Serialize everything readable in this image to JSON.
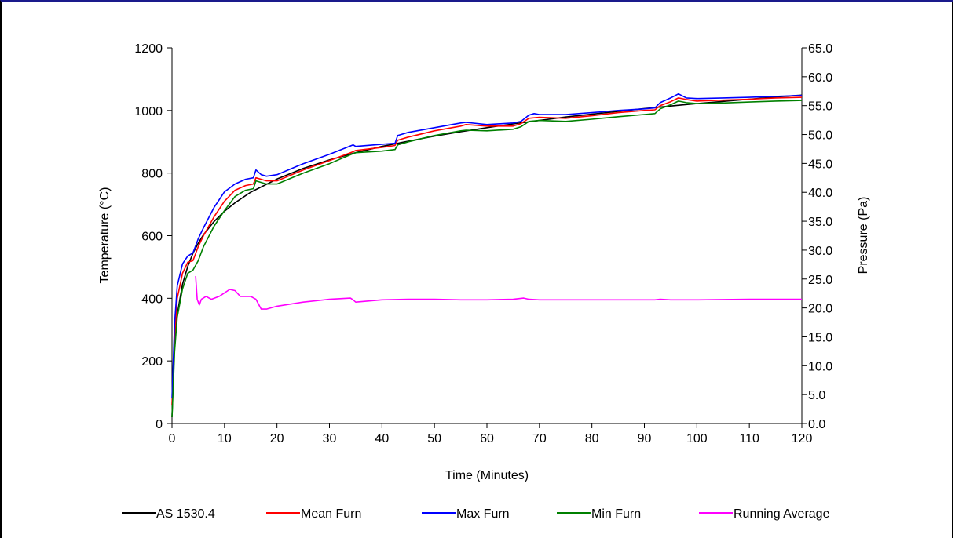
{
  "chart_data": {
    "type": "line",
    "xlabel": "Time (Minutes)",
    "ylabel": "Temperature (°C)",
    "y2label": "Pressure (Pa)",
    "xlim": [
      0,
      120
    ],
    "ylim": [
      0,
      1200
    ],
    "y2lim": [
      0,
      65
    ],
    "x_ticks": [
      0,
      10,
      20,
      30,
      40,
      50,
      60,
      70,
      80,
      90,
      100,
      110,
      120
    ],
    "y_ticks": [
      0,
      200,
      400,
      600,
      800,
      1000,
      1200
    ],
    "y2_ticks": [
      "0.0",
      "5.0",
      "10.0",
      "15.0",
      "20.0",
      "25.0",
      "30.0",
      "35.0",
      "40.0",
      "45.0",
      "50.0",
      "55.0",
      "60.0",
      "65.0"
    ],
    "grid": false,
    "legend_position": "bottom",
    "series": [
      {
        "name": "AS 1530.4",
        "color": "#000000",
        "axis": "left",
        "x": [
          0,
          0.5,
          1,
          2,
          3,
          4,
          5,
          6,
          8,
          10,
          12,
          15,
          20,
          25,
          30,
          35,
          40,
          45,
          50,
          55,
          60,
          65,
          70,
          75,
          80,
          85,
          90,
          95,
          100,
          105,
          110,
          115,
          120
        ],
        "y": [
          20,
          265,
          349,
          445,
          502,
          544,
          576,
          603,
          645,
          678,
          705,
          739,
          781,
          815,
          842,
          865,
          885,
          902,
          918,
          932,
          945,
          957,
          968,
          979,
          988,
          997,
          1006,
          1014,
          1022,
          1029,
          1036,
          1043,
          1049
        ]
      },
      {
        "name": "Mean Furn",
        "color": "#ff0000",
        "axis": "left",
        "x": [
          0,
          0.5,
          1,
          2,
          3,
          4,
          5,
          6,
          8,
          10,
          12,
          14,
          15.5,
          16,
          17,
          18,
          20,
          25,
          30,
          34.5,
          35,
          40,
          42.5,
          43,
          45,
          50,
          55,
          56,
          60,
          65,
          66.5,
          68,
          70,
          75,
          80,
          85,
          90,
          92,
          93,
          95,
          96.5,
          98,
          100,
          105,
          110,
          115,
          120
        ],
        "y": [
          60,
          280,
          400,
          480,
          515,
          520,
          565,
          600,
          660,
          710,
          745,
          760,
          765,
          785,
          780,
          775,
          775,
          810,
          840,
          868,
          872,
          882,
          888,
          905,
          915,
          935,
          950,
          955,
          950,
          950,
          958,
          975,
          978,
          975,
          983,
          993,
          1000,
          1002,
          1015,
          1028,
          1040,
          1035,
          1030,
          1033,
          1036,
          1040,
          1042
        ]
      },
      {
        "name": "Max Furn",
        "color": "#0000ff",
        "axis": "left",
        "x": [
          0,
          0.5,
          1,
          2,
          3,
          4,
          5,
          6,
          8,
          10,
          12,
          14,
          15.5,
          16,
          17,
          18,
          20,
          25,
          30,
          34.5,
          35,
          40,
          42.5,
          43,
          45,
          50,
          55,
          56,
          60,
          65,
          66.5,
          68,
          69,
          70,
          75,
          80,
          85,
          90,
          92,
          93,
          95,
          96.5,
          98,
          100,
          105,
          110,
          115,
          120
        ],
        "y": [
          80,
          320,
          440,
          510,
          535,
          545,
          590,
          625,
          690,
          740,
          765,
          780,
          785,
          810,
          795,
          790,
          795,
          830,
          860,
          890,
          885,
          892,
          895,
          920,
          930,
          945,
          960,
          962,
          955,
          960,
          965,
          985,
          990,
          987,
          987,
          993,
          1000,
          1005,
          1008,
          1025,
          1040,
          1053,
          1040,
          1038,
          1040,
          1042,
          1045,
          1048
        ]
      },
      {
        "name": "Min Furn",
        "color": "#008000",
        "axis": "left",
        "x": [
          0,
          0.5,
          1,
          2,
          3,
          4,
          5,
          6,
          8,
          10,
          12,
          14,
          15.5,
          16,
          17,
          18,
          20,
          25,
          30,
          34.5,
          35,
          40,
          42.5,
          43,
          45,
          50,
          55,
          56,
          60,
          65,
          66.5,
          68,
          70,
          75,
          80,
          85,
          90,
          92,
          93,
          95,
          96.5,
          98,
          100,
          105,
          110,
          115,
          120
        ],
        "y": [
          20,
          230,
          340,
          430,
          480,
          490,
          520,
          565,
          630,
          680,
          725,
          745,
          750,
          775,
          770,
          765,
          765,
          800,
          830,
          862,
          865,
          870,
          875,
          890,
          900,
          920,
          935,
          937,
          935,
          940,
          948,
          965,
          968,
          965,
          972,
          980,
          987,
          990,
          1005,
          1018,
          1030,
          1025,
          1022,
          1024,
          1027,
          1030,
          1032
        ]
      },
      {
        "name": "Running Average",
        "color": "#ff00ff",
        "axis": "right",
        "x": [
          4.5,
          4.8,
          5.2,
          5.6,
          6.5,
          7.5,
          9,
          11,
          12,
          13,
          15,
          16,
          17,
          18,
          20,
          25,
          30,
          34,
          34.5,
          35,
          40,
          45,
          50,
          55,
          60,
          65,
          67,
          68,
          70,
          80,
          90,
          92,
          93,
          95,
          100,
          110,
          120
        ],
        "y": [
          25.5,
          21.5,
          20.5,
          21.5,
          22.0,
          21.5,
          22.0,
          23.2,
          23.0,
          22.0,
          22.0,
          21.5,
          19.8,
          19.8,
          20.3,
          21.0,
          21.5,
          21.7,
          21.4,
          21.0,
          21.4,
          21.5,
          21.5,
          21.4,
          21.4,
          21.5,
          21.7,
          21.5,
          21.4,
          21.4,
          21.4,
          21.4,
          21.5,
          21.4,
          21.4,
          21.5,
          21.5
        ]
      }
    ]
  }
}
